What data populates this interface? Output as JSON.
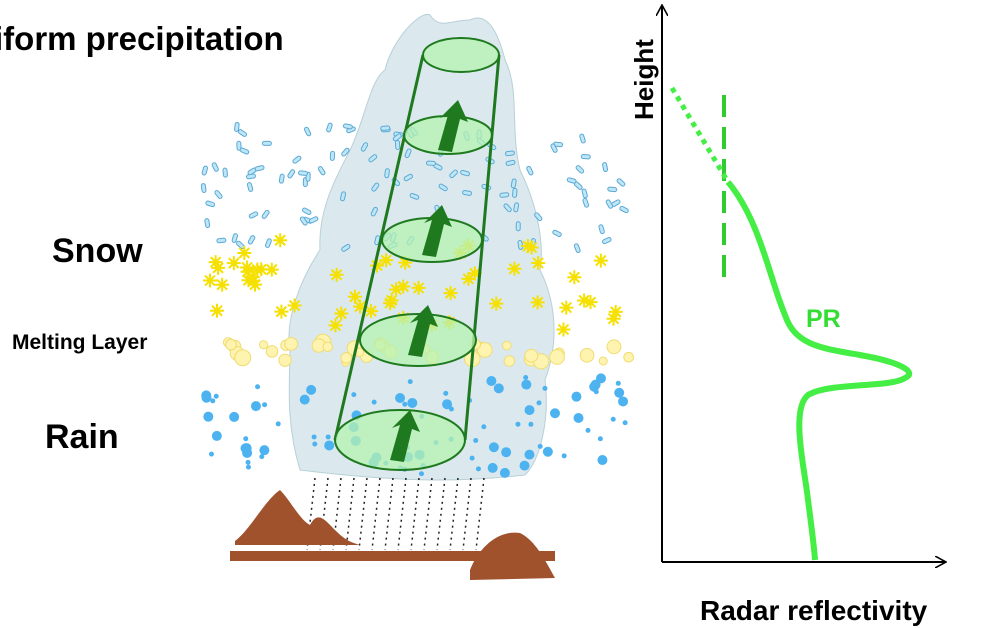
{
  "title": "iform precipitation",
  "layers": {
    "snow": "Snow",
    "melting": "Melting Layer",
    "rain": "Rain"
  },
  "profile": {
    "label": "PR",
    "y_axis": "Height",
    "x_axis": "Radar reflectivity"
  }
}
